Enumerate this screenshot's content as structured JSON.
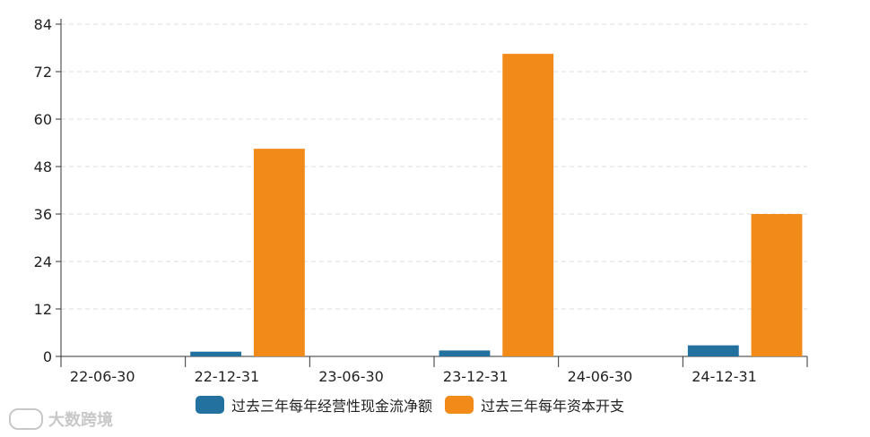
{
  "chart_data": {
    "type": "bar",
    "categories": [
      "22-06-30",
      "22-12-31",
      "23-06-30",
      "23-12-31",
      "24-06-30",
      "24-12-31"
    ],
    "series": [
      {
        "name": "过去三年每年经营性现金流净额",
        "color": "#23719f",
        "values": [
          null,
          1.2,
          null,
          1.5,
          null,
          2.8
        ]
      },
      {
        "name": "过去三年每年资本开支",
        "color": "#f28a1a",
        "values": [
          null,
          52.5,
          null,
          76.5,
          null,
          36
        ]
      }
    ],
    "ylim": [
      0,
      84
    ],
    "yticks": [
      0,
      12,
      24,
      36,
      48,
      60,
      72,
      84
    ],
    "grid": true,
    "legend_position": "bottom"
  },
  "watermark": {
    "text": "大数跨境",
    "logo": "infinity-logo-icon"
  }
}
